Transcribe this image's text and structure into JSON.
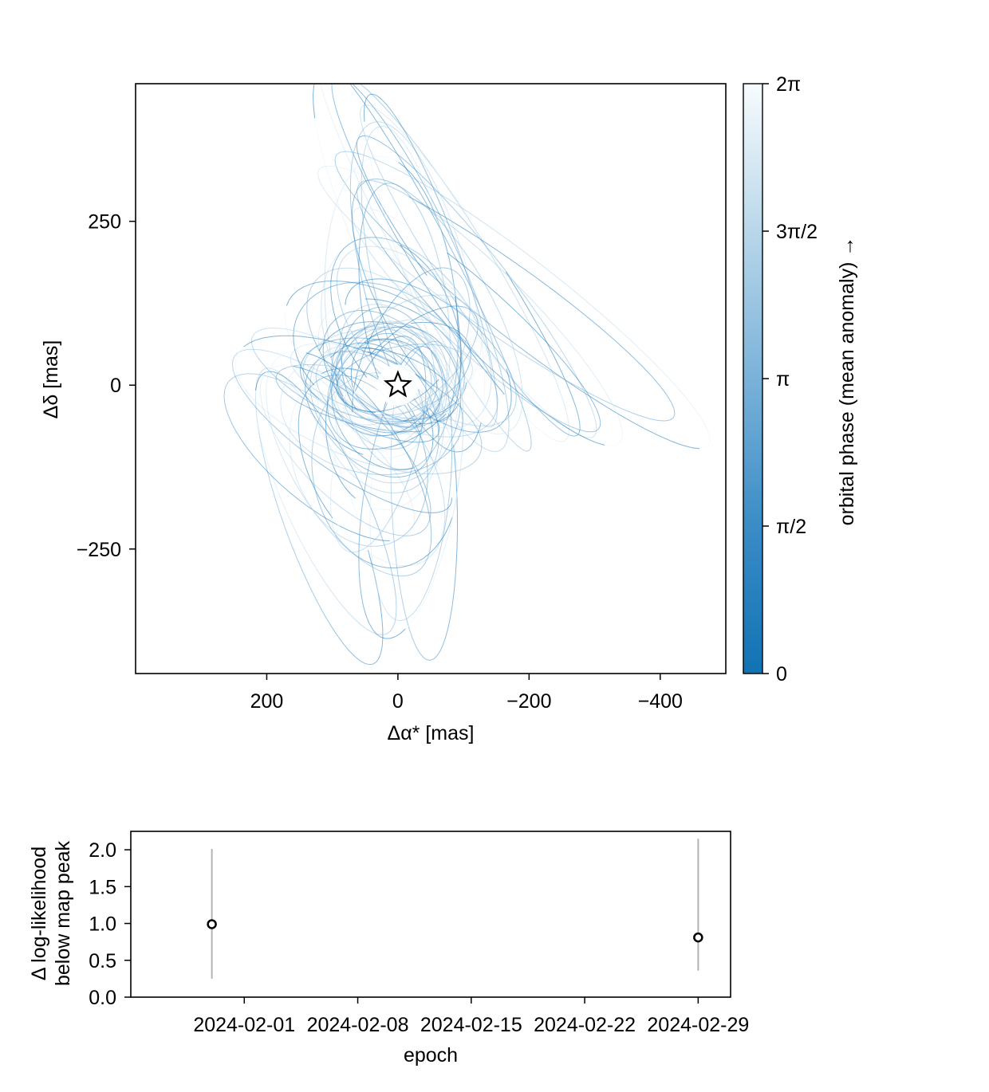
{
  "chart_data": [
    {
      "type": "line",
      "xlabel": "Δα* [mas]",
      "ylabel": "Δδ [mas]",
      "xlim": [
        400,
        -500
      ],
      "ylim": [
        -440,
        460
      ],
      "x_ticks": [
        200,
        0,
        -200,
        -400
      ],
      "x_tick_labels": [
        "200",
        "0",
        "−200",
        "−400"
      ],
      "y_ticks": [
        250,
        0,
        -250
      ],
      "y_tick_labels": [
        "250",
        "0",
        "−250"
      ],
      "grid": false,
      "star_marker": {
        "x": 0,
        "y": 0
      },
      "colormap": {
        "label": "orbital phase (mean anomaly) →",
        "range": [
          0,
          6.2832
        ],
        "ticks": [
          0,
          1.5708,
          3.1416,
          4.7124,
          6.2832
        ],
        "tick_labels": [
          "0",
          "π/2",
          "π",
          "3π/2",
          "2π"
        ],
        "color_low": "#1173b4",
        "color_high": "#f7fbfd"
      },
      "orbits": [
        {
          "a": 340,
          "b": 40,
          "theta": 62,
          "cx": -40,
          "cy": 200
        },
        {
          "a": 330,
          "b": 55,
          "theta": 58,
          "cx": -80,
          "cy": 195
        },
        {
          "a": 300,
          "b": 45,
          "theta": 57,
          "cx": -110,
          "cy": 175
        },
        {
          "a": 320,
          "b": 70,
          "theta": 65,
          "cx": -20,
          "cy": 190
        },
        {
          "a": 360,
          "b": 60,
          "theta": 38,
          "cx": -190,
          "cy": 130
        },
        {
          "a": 330,
          "b": 55,
          "theta": 35,
          "cx": -150,
          "cy": 140
        },
        {
          "a": 290,
          "b": 50,
          "theta": 52,
          "cx": -120,
          "cy": 150
        },
        {
          "a": 260,
          "b": 80,
          "theta": 75,
          "cx": -30,
          "cy": 150
        },
        {
          "a": 240,
          "b": 100,
          "theta": 85,
          "cx": 10,
          "cy": 110
        },
        {
          "a": 220,
          "b": 80,
          "theta": 60,
          "cx": -60,
          "cy": 120
        },
        {
          "a": 240,
          "b": 55,
          "theta": 70,
          "cx": 120,
          "cy": -200
        },
        {
          "a": 220,
          "b": 60,
          "theta": 65,
          "cx": 110,
          "cy": -180
        },
        {
          "a": 180,
          "b": 70,
          "theta": 40,
          "cx": 120,
          "cy": -110
        },
        {
          "a": 250,
          "b": 50,
          "theta": 88,
          "cx": -40,
          "cy": -170
        },
        {
          "a": 210,
          "b": 60,
          "theta": 95,
          "cx": -20,
          "cy": -150
        },
        {
          "a": 200,
          "b": 60,
          "theta": 35,
          "cx": 85,
          "cy": -70
        },
        {
          "a": 170,
          "b": 70,
          "theta": 45,
          "cx": 80,
          "cy": -100
        },
        {
          "a": 160,
          "b": 90,
          "theta": 60,
          "cx": 40,
          "cy": -130
        },
        {
          "a": 150,
          "b": 110,
          "theta": 80,
          "cx": 20,
          "cy": -130
        },
        {
          "a": 140,
          "b": 100,
          "theta": 70,
          "cx": 60,
          "cy": -110
        },
        {
          "a": 130,
          "b": 40,
          "theta": 15,
          "cx": 60,
          "cy": -20
        },
        {
          "a": 120,
          "b": 45,
          "theta": 20,
          "cx": 50,
          "cy": 5
        },
        {
          "a": 110,
          "b": 60,
          "theta": 10,
          "cx": 40,
          "cy": 10
        },
        {
          "a": 125,
          "b": 70,
          "theta": 5,
          "cx": 20,
          "cy": 15
        },
        {
          "a": 120,
          "b": 80,
          "theta": 30,
          "cx": 10,
          "cy": 40
        },
        {
          "a": 110,
          "b": 75,
          "theta": 45,
          "cx": 20,
          "cy": 20
        },
        {
          "a": 100,
          "b": 70,
          "theta": 60,
          "cx": 10,
          "cy": 30
        },
        {
          "a": 100,
          "b": 85,
          "theta": 20,
          "cx": 30,
          "cy": 10
        },
        {
          "a": 95,
          "b": 70,
          "theta": 80,
          "cx": 15,
          "cy": 25
        },
        {
          "a": 90,
          "b": 80,
          "theta": 120,
          "cx": 20,
          "cy": 10
        },
        {
          "a": 85,
          "b": 75,
          "theta": 0,
          "cx": 10,
          "cy": 20
        },
        {
          "a": 80,
          "b": 70,
          "theta": 40,
          "cx": 25,
          "cy": 15
        },
        {
          "a": 95,
          "b": 60,
          "theta": 150,
          "cx": 5,
          "cy": 30
        },
        {
          "a": 105,
          "b": 65,
          "theta": 160,
          "cx": -10,
          "cy": 25
        },
        {
          "a": 90,
          "b": 55,
          "theta": 25,
          "cx": 40,
          "cy": -10
        },
        {
          "a": 85,
          "b": 60,
          "theta": 55,
          "cx": 30,
          "cy": -20
        },
        {
          "a": 100,
          "b": 70,
          "theta": 35,
          "cx": 50,
          "cy": -30
        },
        {
          "a": 115,
          "b": 75,
          "theta": 50,
          "cx": 40,
          "cy": -40
        },
        {
          "a": 120,
          "b": 85,
          "theta": 65,
          "cx": 30,
          "cy": -50
        },
        {
          "a": 130,
          "b": 90,
          "theta": 90,
          "cx": 20,
          "cy": -60
        },
        {
          "a": 140,
          "b": 95,
          "theta": 10,
          "cx": 40,
          "cy": -40
        },
        {
          "a": 135,
          "b": 100,
          "theta": 25,
          "cx": 30,
          "cy": 50
        },
        {
          "a": 145,
          "b": 85,
          "theta": 45,
          "cx": 20,
          "cy": 60
        },
        {
          "a": 150,
          "b": 100,
          "theta": 70,
          "cx": 10,
          "cy": 80
        },
        {
          "a": 165,
          "b": 95,
          "theta": 55,
          "cx": -20,
          "cy": 80
        },
        {
          "a": 175,
          "b": 85,
          "theta": 48,
          "cx": -40,
          "cy": 70
        },
        {
          "a": 180,
          "b": 90,
          "theta": 30,
          "cx": 10,
          "cy": 40
        },
        {
          "a": 150,
          "b": 70,
          "theta": 115,
          "cx": -20,
          "cy": 40
        },
        {
          "a": 140,
          "b": 90,
          "theta": 135,
          "cx": -10,
          "cy": 20
        },
        {
          "a": 120,
          "b": 95,
          "theta": 100,
          "cx": 0,
          "cy": -30
        },
        {
          "a": 110,
          "b": 95,
          "theta": 75,
          "cx": 5,
          "cy": -20
        },
        {
          "a": 75,
          "b": 65,
          "theta": 15,
          "cx": 15,
          "cy": 5
        },
        {
          "a": 70,
          "b": 60,
          "theta": 70,
          "cx": 10,
          "cy": 10
        },
        {
          "a": 160,
          "b": 50,
          "theta": 28,
          "cx": 80,
          "cy": 0
        },
        {
          "a": 200,
          "b": 80,
          "theta": 22,
          "cx": 60,
          "cy": -30
        },
        {
          "a": 190,
          "b": 65,
          "theta": 82,
          "cx": -10,
          "cy": 120
        },
        {
          "a": 230,
          "b": 60,
          "theta": 78,
          "cx": -20,
          "cy": 170
        },
        {
          "a": 270,
          "b": 45,
          "theta": 70,
          "cx": -50,
          "cy": 190
        },
        {
          "a": 280,
          "b": 60,
          "theta": 45,
          "cx": -140,
          "cy": 110
        },
        {
          "a": 250,
          "b": 50,
          "theta": 42,
          "cx": -120,
          "cy": 100
        },
        {
          "a": 170,
          "b": 60,
          "theta": 105,
          "cx": 30,
          "cy": -90
        },
        {
          "a": 230,
          "b": 70,
          "theta": 100,
          "cx": -20,
          "cy": -160
        },
        {
          "a": 195,
          "b": 85,
          "theta": 58,
          "cx": 75,
          "cy": -120
        },
        {
          "a": 125,
          "b": 55,
          "theta": 140,
          "cx": -20,
          "cy": 30
        },
        {
          "a": 105,
          "b": 50,
          "theta": 170,
          "cx": -10,
          "cy": 10
        },
        {
          "a": 155,
          "b": 75,
          "theta": 38,
          "cx": -50,
          "cy": 50
        }
      ]
    },
    {
      "type": "scatter",
      "xlabel": "epoch",
      "ylabel": "Δ log-likelihood below map peak",
      "ylabel_lines": [
        "Δ log-likelihood",
        "below map peak"
      ],
      "xlim": [
        "2024-01-25",
        "2024-03-02"
      ],
      "ylim": [
        0.0,
        2.25
      ],
      "x_tick_labels": [
        "2024-02-01",
        "2024-02-08",
        "2024-02-15",
        "2024-02-22",
        "2024-02-29"
      ],
      "y_tick_labels": [
        "0.0",
        "0.5",
        "1.0",
        "1.5",
        "2.0"
      ],
      "grid": false,
      "points": [
        {
          "x": "2024-01-30",
          "y": 0.99,
          "y_low": 0.25,
          "y_high": 2.01
        },
        {
          "x": "2024-02-29",
          "y": 0.81,
          "y_low": 0.36,
          "y_high": 2.15
        }
      ]
    }
  ]
}
